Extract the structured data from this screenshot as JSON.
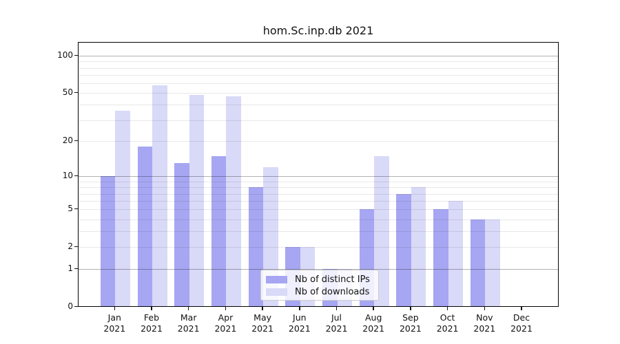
{
  "chart_data": {
    "type": "bar",
    "title": "hom.Sc.inp.db 2021",
    "categories": [
      "Jan",
      "Feb",
      "Mar",
      "Apr",
      "May",
      "Jun",
      "Jul",
      "Aug",
      "Sep",
      "Oct",
      "Nov",
      "Dec"
    ],
    "x_tick_second_line": "2021",
    "series": [
      {
        "name": "Nb of distinct IPs",
        "color": "#a6a6f2",
        "values": [
          10,
          18,
          13,
          15,
          8,
          2,
          1,
          5,
          7,
          5,
          4,
          0
        ]
      },
      {
        "name": "Nb of downloads",
        "color": "#d9d9f8",
        "values": [
          36,
          58,
          48,
          47,
          12,
          2,
          1,
          15,
          8,
          6,
          4,
          0
        ]
      }
    ],
    "y_ticks": [
      0,
      1,
      2,
      5,
      10,
      20,
      50,
      100
    ],
    "y_major_gridlines": [
      1,
      10,
      100
    ],
    "y_minor_gridlines": [
      2,
      3,
      4,
      5,
      6,
      7,
      8,
      9,
      20,
      30,
      40,
      50,
      60,
      70,
      80,
      90
    ],
    "y_axis_scale": "log10(1+value)",
    "ylim": [
      0,
      127
    ],
    "grid": "horizontal major+minor",
    "legend_position": "lower center",
    "colors": {
      "background": "#ffffff",
      "axis": "#000000",
      "text": "#111111",
      "major_grid": "#b5b5b5",
      "minor_grid": "#e8e8e8"
    }
  }
}
